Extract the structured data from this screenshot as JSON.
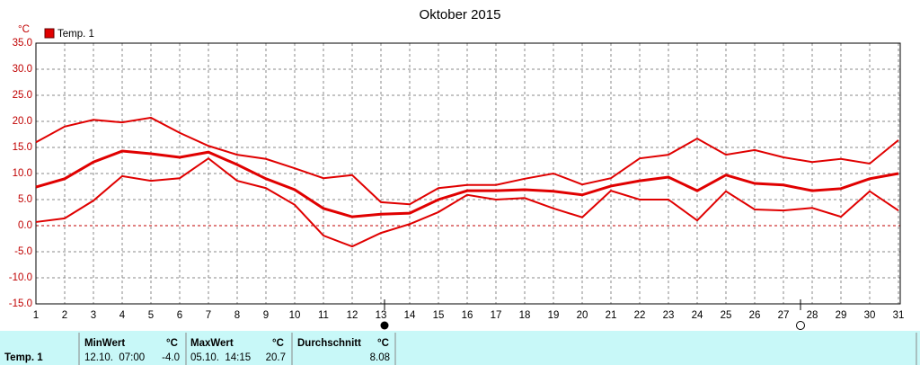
{
  "chart_data": {
    "type": "line",
    "title": "Oktober 2015",
    "y_unit": "°C",
    "x": [
      1,
      2,
      3,
      4,
      5,
      6,
      7,
      8,
      9,
      10,
      11,
      12,
      13,
      14,
      15,
      16,
      17,
      18,
      19,
      20,
      21,
      22,
      23,
      24,
      25,
      26,
      27,
      28,
      29,
      30,
      31
    ],
    "xlim": [
      1,
      31
    ],
    "xticks": [
      1,
      2,
      3,
      4,
      5,
      6,
      7,
      8,
      9,
      10,
      11,
      12,
      13,
      14,
      15,
      16,
      17,
      18,
      19,
      20,
      21,
      22,
      23,
      24,
      25,
      26,
      27,
      28,
      29,
      30,
      31
    ],
    "ylim": [
      -15,
      35
    ],
    "yticks": [
      {
        "value": -15,
        "label": "-15.0"
      },
      {
        "value": -10,
        "label": "-10.0"
      },
      {
        "value": -5,
        "label": "-5.0"
      },
      {
        "value": 0,
        "label": "0.0"
      },
      {
        "value": 5,
        "label": "5.0"
      },
      {
        "value": 10,
        "label": "10.0"
      },
      {
        "value": 15,
        "label": "15.0"
      },
      {
        "value": 20,
        "label": "20.0"
      },
      {
        "value": 25,
        "label": "25.0"
      },
      {
        "value": 30,
        "label": "30.0"
      },
      {
        "value": 35,
        "label": "35.0"
      }
    ],
    "grid": true,
    "legend": "top-left",
    "series": [
      {
        "name": "Temp. 1",
        "color": "#e00000",
        "values": [
          7.4,
          9.0,
          12.2,
          14.3,
          13.8,
          13.1,
          14.1,
          11.7,
          9.0,
          6.9,
          3.3,
          1.7,
          2.2,
          2.4,
          5.0,
          6.7,
          6.7,
          6.9,
          6.6,
          5.9,
          7.6,
          8.6,
          9.3,
          6.7,
          9.7,
          8.1,
          7.8,
          6.7,
          7.1,
          9.0,
          10.0
        ],
        "max": [
          16.0,
          19.0,
          20.3,
          19.8,
          20.7,
          17.8,
          15.3,
          13.6,
          12.8,
          11.0,
          9.1,
          9.7,
          4.5,
          4.1,
          7.2,
          7.8,
          7.8,
          9.0,
          10.0,
          7.9,
          9.1,
          12.9,
          13.6,
          16.7,
          13.6,
          14.5,
          13.1,
          12.2,
          12.8,
          11.9,
          16.4
        ],
        "min": [
          0.7,
          1.4,
          4.8,
          9.5,
          8.6,
          9.1,
          12.9,
          8.6,
          7.2,
          4.0,
          -1.9,
          -4.0,
          -1.4,
          0.3,
          2.6,
          5.9,
          5.0,
          5.3,
          3.3,
          1.6,
          6.7,
          5.0,
          5.0,
          1.0,
          6.6,
          3.1,
          2.9,
          3.4,
          1.7,
          6.6,
          2.9
        ]
      }
    ]
  },
  "stats": {
    "sensor": "Temp. 1",
    "min": {
      "label": "MinWert",
      "unit": "°C",
      "time": "12.10.  07:00",
      "value": "-4.0"
    },
    "max": {
      "label": "MaxWert",
      "unit": "°C",
      "time": "05.10.  14:15",
      "value": "20.7"
    },
    "avg": {
      "label": "Durchschnitt",
      "unit": "°C",
      "value": "8.08"
    }
  }
}
